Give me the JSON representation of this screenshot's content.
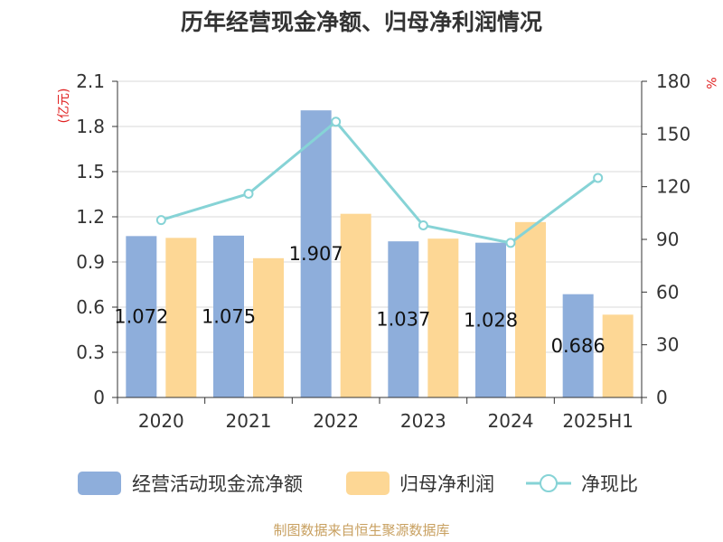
{
  "chart_data": {
    "type": "bar",
    "title": "历年经营现金净额、归母净利润情况",
    "categories": [
      "2020",
      "2021",
      "2022",
      "2023",
      "2024",
      "2025H1"
    ],
    "left_axis": {
      "unit": "(亿元)",
      "ticks": [
        "0",
        "0.3",
        "0.6",
        "0.9",
        "1.2",
        "1.5",
        "1.8",
        "2.1"
      ],
      "ylim": [
        0,
        2.1
      ]
    },
    "right_axis": {
      "unit": "%",
      "ticks": [
        "0",
        "30",
        "60",
        "90",
        "120",
        "150",
        "180"
      ],
      "ylim": [
        0,
        180
      ]
    },
    "series": [
      {
        "name": "经营活动现金流净额",
        "type": "bar",
        "axis": "left",
        "color": "#8eaedb",
        "values": [
          1.072,
          1.075,
          1.907,
          1.037,
          1.028,
          0.686
        ],
        "labels": [
          "1.072",
          "1.075",
          "1.907",
          "1.037",
          "1.028",
          "0.686"
        ]
      },
      {
        "name": "归母净利润",
        "type": "bar",
        "axis": "left",
        "color": "#fdd795",
        "values": [
          1.06,
          0.925,
          1.22,
          1.055,
          1.165,
          0.55
        ]
      },
      {
        "name": "净现比",
        "type": "line",
        "axis": "right",
        "color": "#86d3d6",
        "values": [
          101,
          116,
          157,
          98,
          88,
          125
        ]
      }
    ],
    "grid": true,
    "legend_position": "bottom"
  },
  "source": "制图数据来自恒生聚源数据库"
}
